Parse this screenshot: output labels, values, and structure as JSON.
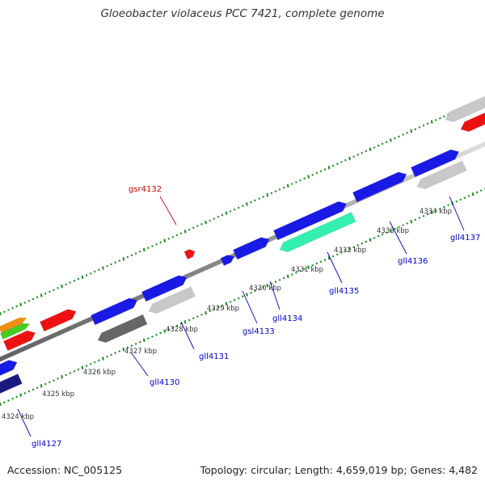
{
  "header": {
    "title": "Gloeobacter violaceus PCC 7421, complete genome"
  },
  "footer": {
    "accession": "Accession: NC_005125",
    "topology": "Topology: circular; Length: 4,659,019 bp; Genes: 4,482"
  },
  "colors": {
    "backbone": "#8c8c8c",
    "gene_blue": "#1a1ae6",
    "gene_red": "#ee1111",
    "gene_gray": "#c8c8c8",
    "gene_dark_gray": "#666666",
    "gene_teal": "#33f0b0",
    "gene_navy": "#1a1a80",
    "gene_orange": "#f09010",
    "gene_green": "#44cc22",
    "tick_green": "#1a8a1a",
    "label_blue": "#0000cc",
    "label_red": "#cc0000"
  },
  "scale_labels": [
    "4324 kbp",
    "4325 kbp",
    "4326 kbp",
    "4327 kbp",
    "4328 kbp",
    "4329 kbp",
    "4330 kbp",
    "4331 kbp",
    "4332 kbp",
    "4333 kbp",
    "4334 kbp"
  ],
  "gene_labels": {
    "gll4127": "gll4127",
    "gll4130": "gll4130",
    "gll4131": "gll4131",
    "gsr4132": "gsr4132",
    "gsl4133": "gsl4133",
    "gll4134": "gll4134",
    "gll4135": "gll4135",
    "gll4136": "gll4136",
    "gll4137": "gll4137"
  }
}
